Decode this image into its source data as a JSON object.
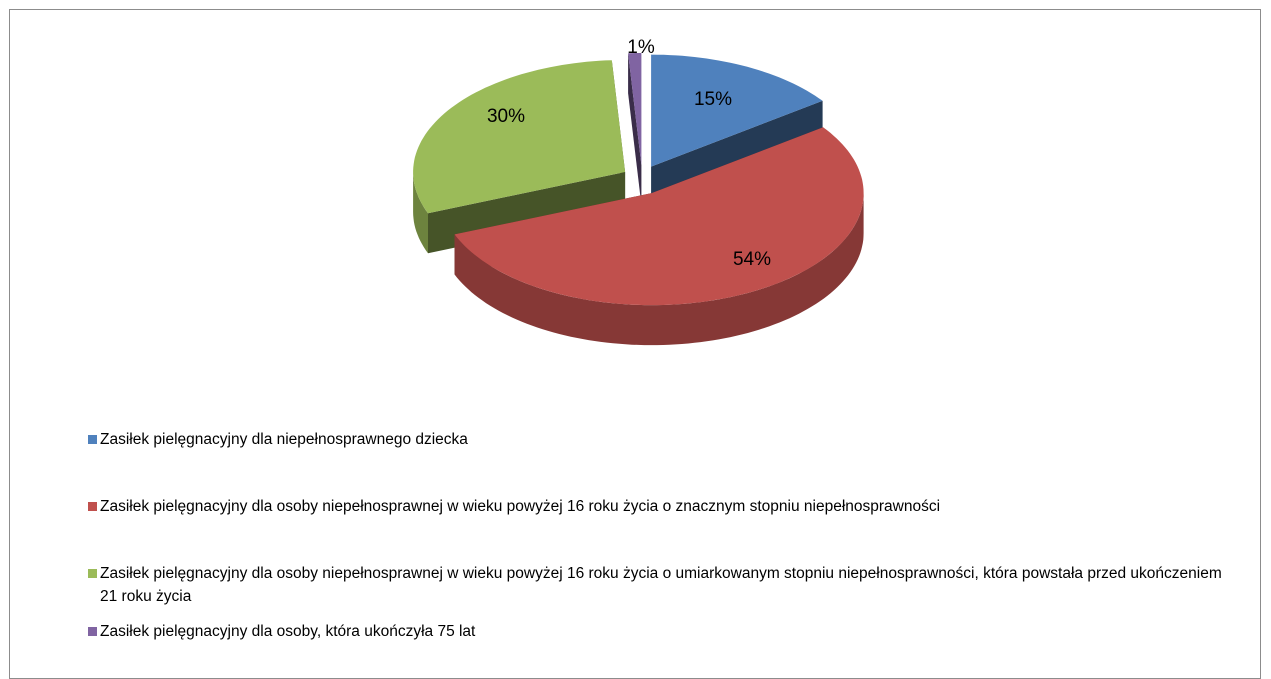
{
  "chart_data": {
    "type": "pie",
    "view": "3d-exploded",
    "categories": [
      "Zasiłek pielęgnacyjny dla niepełnosprawnego dziecka",
      "Zasiłek pielęgnacyjny dla osoby niepełnosprawnej w wieku powyżej 16 roku życia o znacznym stopniu niepełnosprawności",
      "Zasiłek pielęgnacyjny dla osoby niepełnosprawnej w wieku powyżej 16 roku życia o umiarkowanym stopniu niepełnosprawności, która powstała przed ukończeniem 21 roku życia",
      "Zasiłek pielęgnacyjny dla osoby, która ukończyła 75 lat"
    ],
    "values": [
      15,
      54,
      30,
      1
    ],
    "value_labels": [
      "15%",
      "54%",
      "30%",
      "1%"
    ],
    "colors": [
      "#4f81bd",
      "#c0504d",
      "#9bbb59",
      "#8064a2"
    ],
    "legend": "bottom"
  }
}
